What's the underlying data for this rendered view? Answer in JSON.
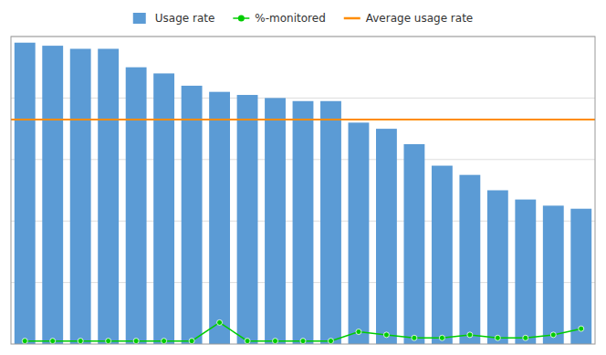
{
  "chart_data": {
    "type": "bar",
    "categories": [
      null,
      null,
      null,
      null,
      null,
      null,
      null,
      null,
      null,
      null,
      null,
      null,
      null,
      null,
      null,
      null,
      null,
      null,
      null,
      null,
      null
    ],
    "series": [
      {
        "name": "Usage rate",
        "type": "bar",
        "color": "#5B9BD5",
        "values": [
          98,
          97,
          96,
          96,
          90,
          88,
          84,
          82,
          81,
          80,
          79,
          79,
          72,
          70,
          65,
          58,
          55,
          50,
          47,
          45,
          44
        ]
      },
      {
        "name": "%-monitored",
        "type": "line",
        "marker": "circle",
        "color": "#00CC00",
        "values": [
          1,
          1,
          1,
          1,
          1,
          1,
          1,
          7,
          1,
          1,
          1,
          1,
          4,
          3,
          2,
          2,
          3,
          2,
          2,
          3,
          5
        ]
      },
      {
        "name": "Average usage rate",
        "type": "hline",
        "color": "#FF8C00",
        "value": 73
      }
    ],
    "ylim": [
      0,
      100
    ],
    "yticks": [
      20,
      40,
      60,
      80,
      100
    ],
    "grid": true,
    "tick_labels": false,
    "legend": "top"
  }
}
